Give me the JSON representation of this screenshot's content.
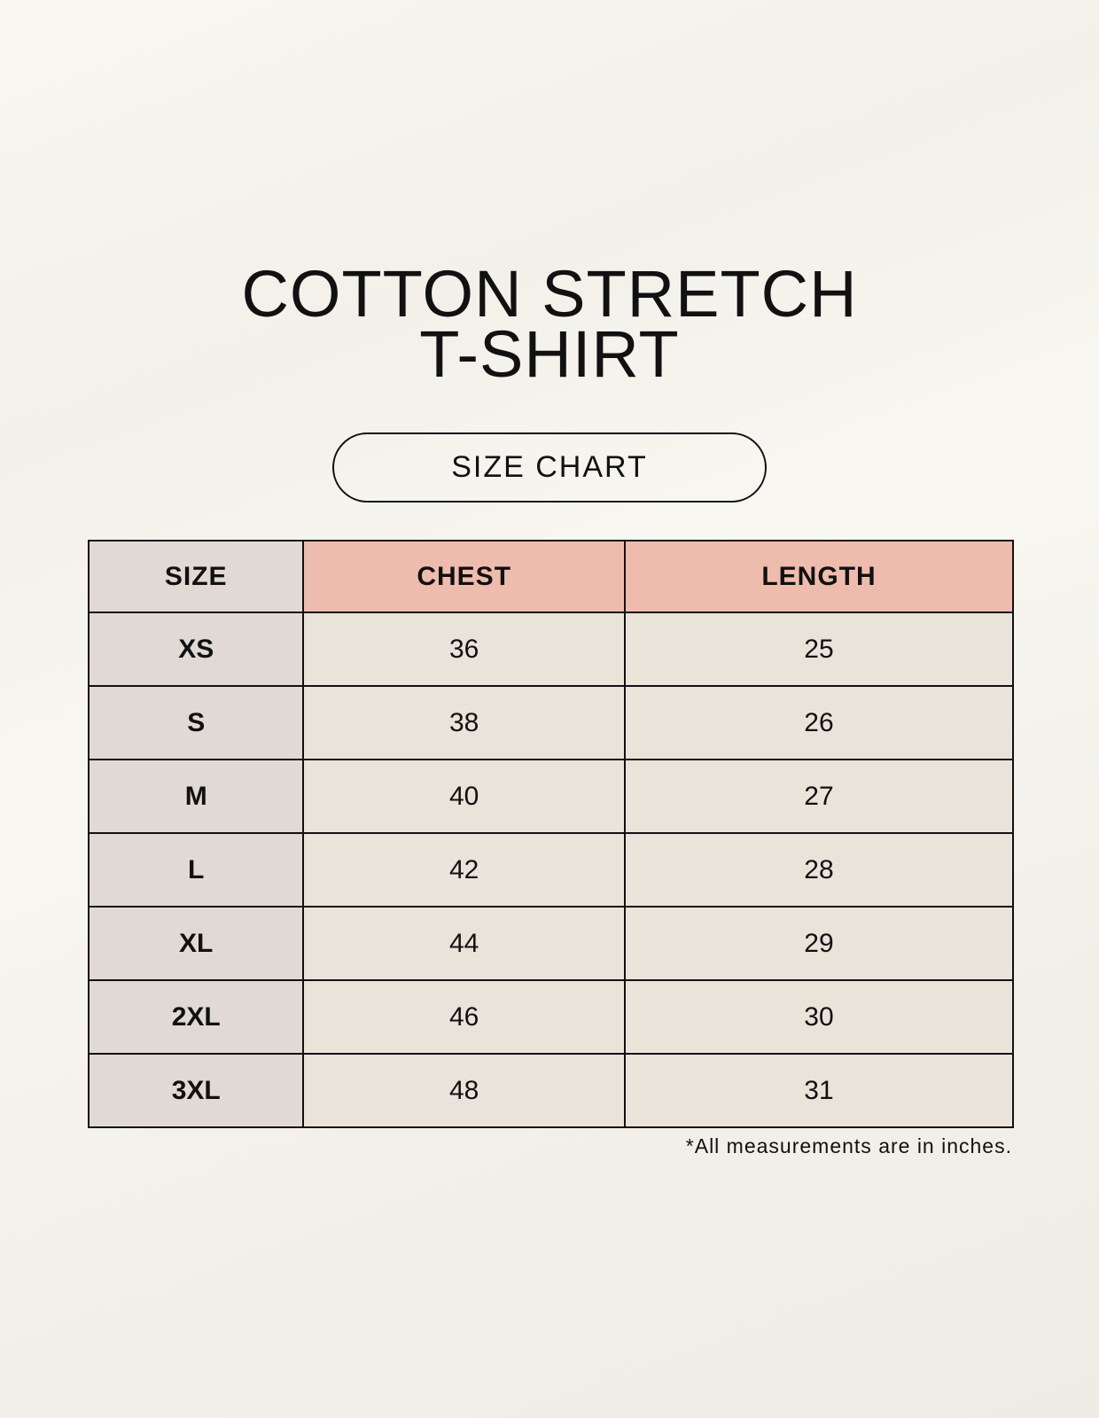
{
  "title_line1": "COTTON STRETCH",
  "title_line2": "T-SHIRT",
  "subtitle": "SIZE CHART",
  "table": {
    "headers": [
      "SIZE",
      "CHEST",
      "LENGTH"
    ],
    "rows": [
      [
        "XS",
        "36",
        "25"
      ],
      [
        "S",
        "38",
        "26"
      ],
      [
        "M",
        "40",
        "27"
      ],
      [
        "L",
        "42",
        "28"
      ],
      [
        "XL",
        "44",
        "29"
      ],
      [
        "2XL",
        "46",
        "30"
      ],
      [
        "3XL",
        "48",
        "31"
      ]
    ]
  },
  "colors": {
    "header_accent": "#eebcae",
    "size_column": "#e0d9d4",
    "cell": "#eae3da"
  },
  "footnote": "*All measurements are in inches."
}
